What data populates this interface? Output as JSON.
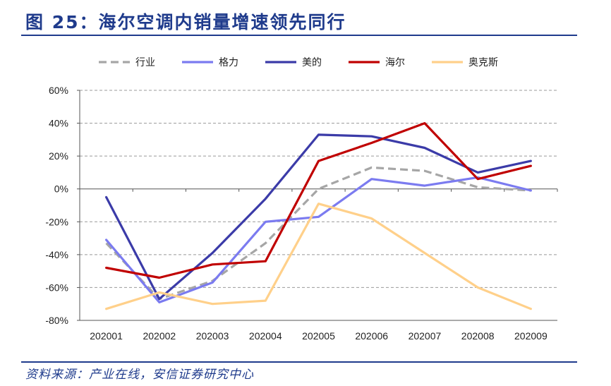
{
  "figure": {
    "title": "图 25：海尔空调内销量增速领先同行",
    "source": "资料来源：产业在线，安信证券研究中心"
  },
  "chart_data": {
    "type": "line",
    "categories": [
      "202001",
      "202002",
      "202003",
      "202004",
      "202005",
      "202006",
      "202007",
      "202008",
      "202009"
    ],
    "ylim": [
      -80,
      60
    ],
    "yticks": [
      60,
      40,
      20,
      0,
      -20,
      -40,
      -60,
      -80
    ],
    "ytick_labels": [
      "60%",
      "40%",
      "20%",
      "0%",
      "-20%",
      "-40%",
      "-60%",
      "-80%"
    ],
    "grid": true,
    "legend_position": "top",
    "series": [
      {
        "name": "行业",
        "color": "#a6a6a6",
        "dashed": true,
        "values": [
          -33,
          -67,
          -56,
          -33,
          0,
          13,
          11,
          1,
          -1
        ]
      },
      {
        "name": "格力",
        "color": "#7b7bf0",
        "dashed": false,
        "values": [
          -31,
          -69,
          -57,
          -20,
          -17,
          6,
          2,
          7,
          -1
        ]
      },
      {
        "name": "美的",
        "color": "#3b3ba8",
        "dashed": false,
        "values": [
          -5,
          -67,
          -39,
          -6,
          33,
          32,
          25,
          10,
          17
        ]
      },
      {
        "name": "海尔",
        "color": "#c00000",
        "dashed": false,
        "values": [
          -48,
          -54,
          -46,
          -44,
          17,
          28,
          40,
          6,
          14
        ]
      },
      {
        "name": "奥克斯",
        "color": "#ffd08a",
        "dashed": false,
        "values": [
          -73,
          -63,
          -70,
          -68,
          -9,
          -18,
          -39,
          -60,
          -73
        ]
      }
    ]
  }
}
